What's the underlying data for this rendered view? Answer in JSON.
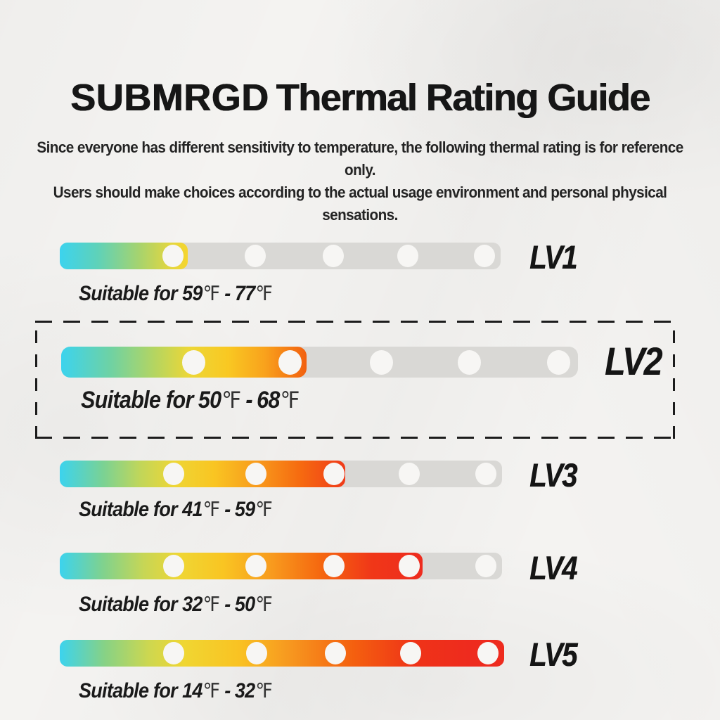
{
  "header": {
    "brand": "SUBMRGD",
    "title_rest": "Thermal Rating Guide",
    "subtitle_line1": "Since everyone has different sensitivity to temperature, the following thermal rating is for reference only.",
    "subtitle_line2": "Users should make choices according to the actual usage environment and personal physical sensations."
  },
  "units": {
    "degree_fahrenheit": "℉",
    "separator": "-"
  },
  "levels": [
    {
      "label": "LV1",
      "prefix": "Suitable for",
      "low": "59",
      "high": "77",
      "level": 1,
      "fill_percent": 29,
      "highlighted": false
    },
    {
      "label": "LV2",
      "prefix": "Suitable for",
      "low": "50",
      "high": "68",
      "level": 2,
      "fill_percent": 47.5,
      "highlighted": true
    },
    {
      "label": "LV3",
      "prefix": "Suitable for",
      "low": "41",
      "high": "59",
      "level": 3,
      "fill_percent": 64.5,
      "highlighted": false
    },
    {
      "label": "LV4",
      "prefix": "Suitable for",
      "low": "32",
      "high": "50",
      "level": 4,
      "fill_percent": 82,
      "highlighted": false
    },
    {
      "label": "LV5",
      "prefix": "Suitable for",
      "low": "14",
      "high": "32",
      "level": 5,
      "fill_percent": 100,
      "highlighted": false
    }
  ],
  "chart_data": {
    "type": "bar",
    "title": "SUBMRGD Thermal Rating Guide",
    "categories": [
      "LV1",
      "LV2",
      "LV3",
      "LV4",
      "LV5"
    ],
    "series": [
      {
        "name": "suitable_range_low_F",
        "values": [
          59,
          50,
          41,
          32,
          14
        ]
      },
      {
        "name": "suitable_range_high_F",
        "values": [
          77,
          68,
          59,
          50,
          32
        ]
      },
      {
        "name": "filled_segments_of_5",
        "values": [
          1,
          2,
          3,
          4,
          5
        ]
      }
    ],
    "annotations": [
      "Suitable for 59℉ - 77℉",
      "Suitable for 50℉ - 68℉",
      "Suitable for 41℉ - 59℉",
      "Suitable for 32℉ - 50℉",
      "Suitable for 14℉ - 32℉"
    ],
    "highlighted_category": "LV2",
    "legend": "none",
    "grid": false,
    "orientation": "horizontal",
    "segment_dots_per_bar": 5
  },
  "colors": {
    "background": "#f4f3f1",
    "bar_track_gray": "#d9d8d5",
    "dot_white": "#f7f6f4",
    "gradient_cold": "#3cd3ee",
    "gradient_mid_green": "#9ad374",
    "gradient_yellow": "#f0d632",
    "gradient_orange": "#f7971f",
    "gradient_hot_red": "#ee2b1e",
    "text": "#1b1b1b",
    "dashed_box": "#1c1c1c"
  }
}
